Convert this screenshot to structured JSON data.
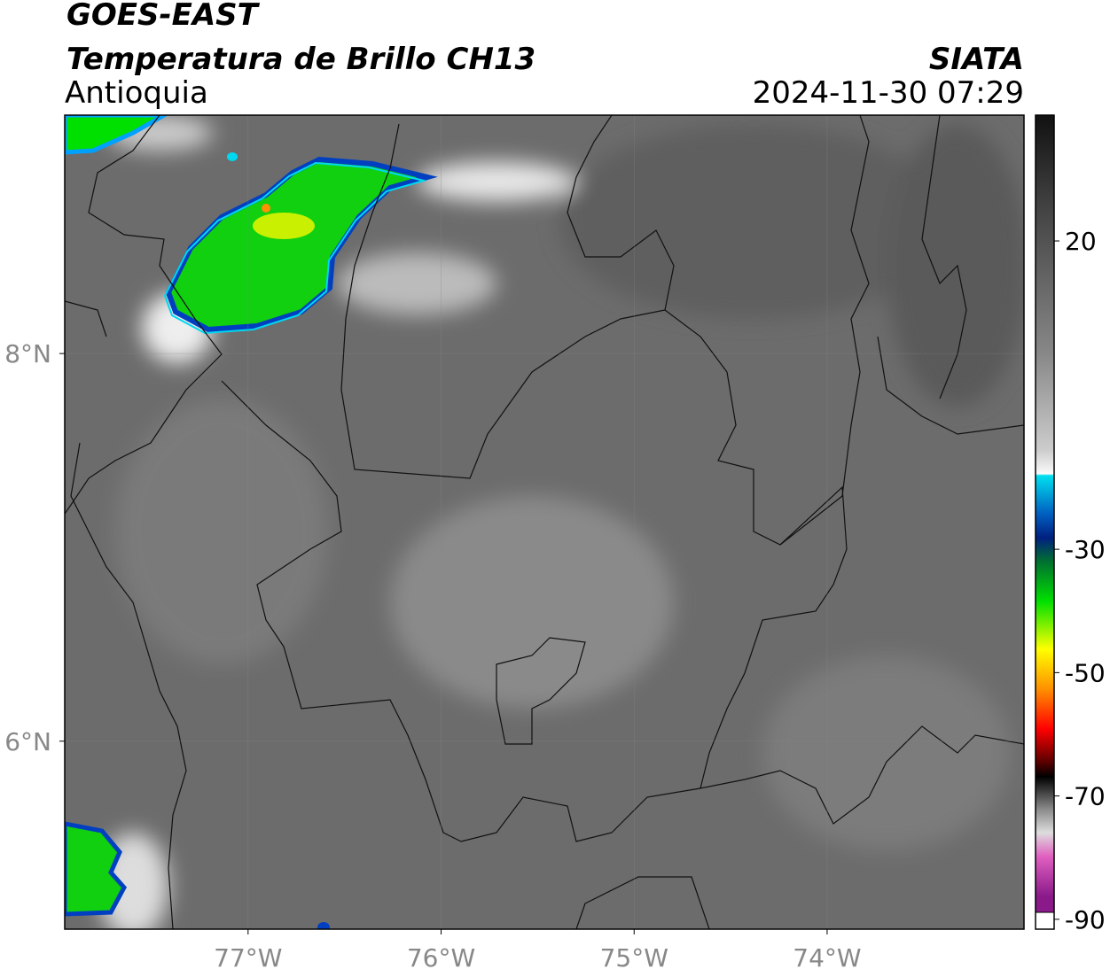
{
  "header": {
    "title": "GOES-EAST",
    "subtitle": "Temperatura de Brillo CH13",
    "region": "Antioquia",
    "source": "SIATA",
    "datetime": "2024-11-30 07:29"
  },
  "map": {
    "xlim": [
      -77.95,
      -72.98
    ],
    "ylim": [
      5.03,
      9.23
    ],
    "xticks": [
      {
        "value": -77,
        "label": "77°W"
      },
      {
        "value": -76,
        "label": "76°W"
      },
      {
        "value": -75,
        "label": "75°W"
      },
      {
        "value": -74,
        "label": "74°W"
      }
    ],
    "yticks": [
      {
        "value": 8,
        "label": "8°N"
      },
      {
        "value": 6,
        "label": "6°N"
      }
    ],
    "grid": true
  },
  "colorbar": {
    "lim": [
      -91.6,
      40.4
    ],
    "ticks": [
      20,
      -30,
      -50,
      -70,
      -90
    ]
  }
}
